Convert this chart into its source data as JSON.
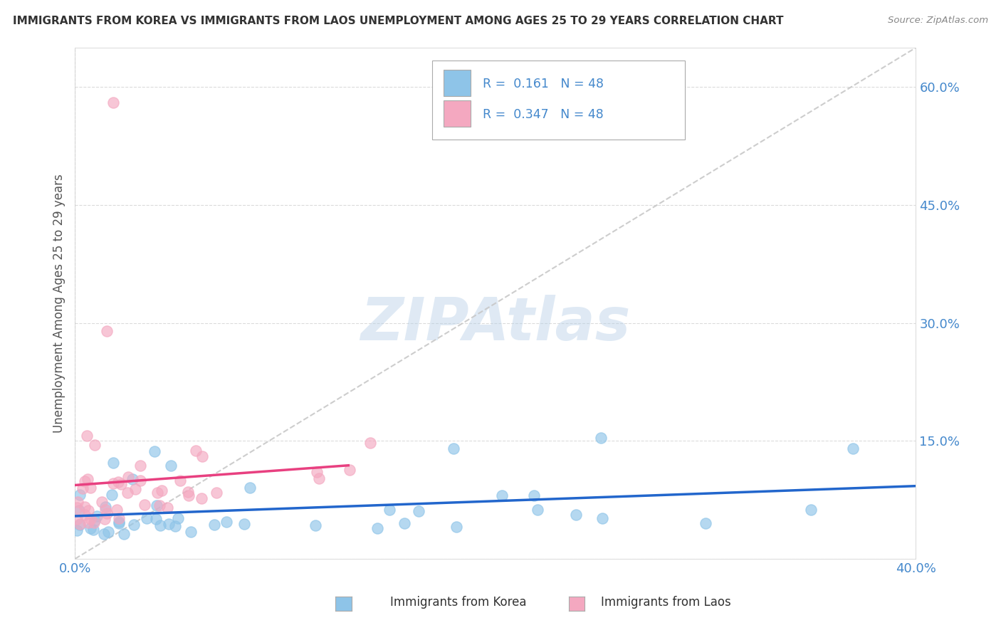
{
  "title": "IMMIGRANTS FROM KOREA VS IMMIGRANTS FROM LAOS UNEMPLOYMENT AMONG AGES 25 TO 29 YEARS CORRELATION CHART",
  "source": "Source: ZipAtlas.com",
  "ylabel": "Unemployment Among Ages 25 to 29 years",
  "xlabel_korea": "Immigrants from Korea",
  "xlabel_laos": "Immigrants from Laos",
  "xlim": [
    0.0,
    0.4
  ],
  "ylim": [
    0.0,
    0.65
  ],
  "ytick_vals": [
    0.0,
    0.15,
    0.3,
    0.45,
    0.6
  ],
  "ytick_labels": [
    "",
    "15.0%",
    "30.0%",
    "45.0%",
    "60.0%"
  ],
  "xtick_vals": [
    0.0,
    0.4
  ],
  "xtick_labels": [
    "0.0%",
    "40.0%"
  ],
  "korea_color": "#8ec4e8",
  "laos_color": "#f4a8c0",
  "korea_line_color": "#2266cc",
  "laos_line_color": "#e84080",
  "ref_line_color": "#c8c8c8",
  "R_korea": 0.161,
  "R_laos": 0.347,
  "N": 48,
  "watermark": "ZIPAtlas",
  "background_color": "#ffffff",
  "grid_color": "#d8d8d8",
  "tick_color": "#4488cc",
  "title_color": "#333333",
  "source_color": "#888888",
  "ylabel_color": "#555555"
}
